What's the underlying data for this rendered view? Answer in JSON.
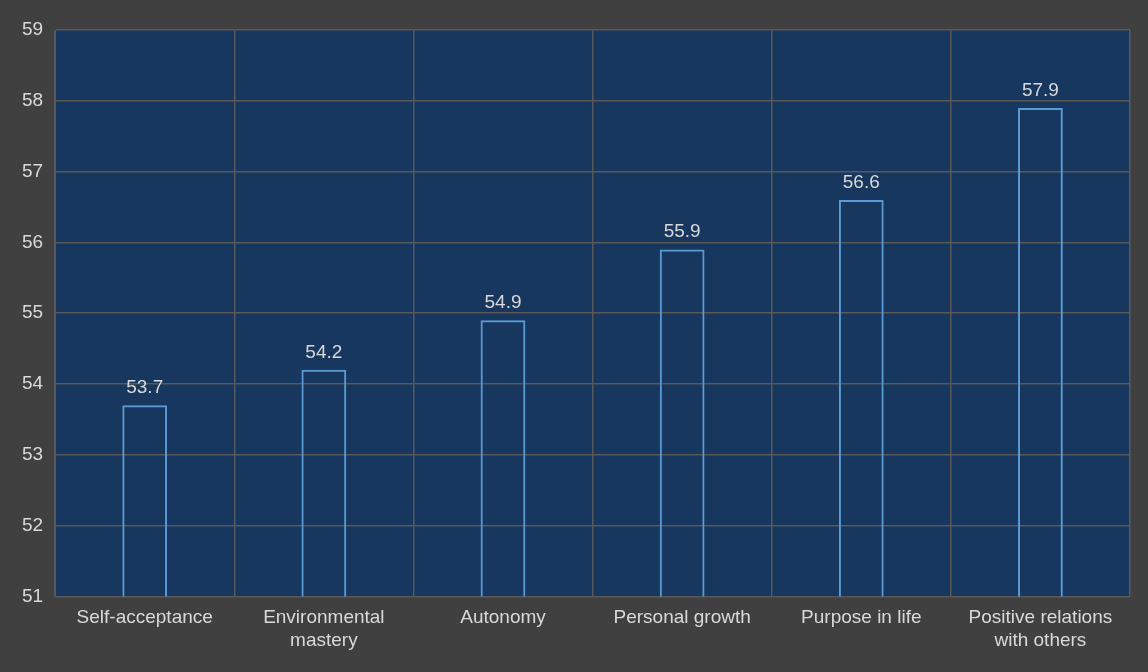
{
  "chart_data": {
    "type": "bar",
    "categories": [
      "Self-acceptance",
      "Environmental mastery",
      "Autonomy",
      "Personal growth",
      "Purpose in life",
      "Positive relations with others"
    ],
    "values": [
      53.7,
      54.2,
      54.9,
      55.9,
      56.6,
      57.9
    ],
    "color": "#5b9bd5",
    "ylim": [
      51,
      59
    ],
    "yticks": [
      51,
      52,
      53,
      54,
      55,
      56,
      57,
      58,
      59
    ],
    "grid": true,
    "data_labels": true,
    "legend": false
  }
}
